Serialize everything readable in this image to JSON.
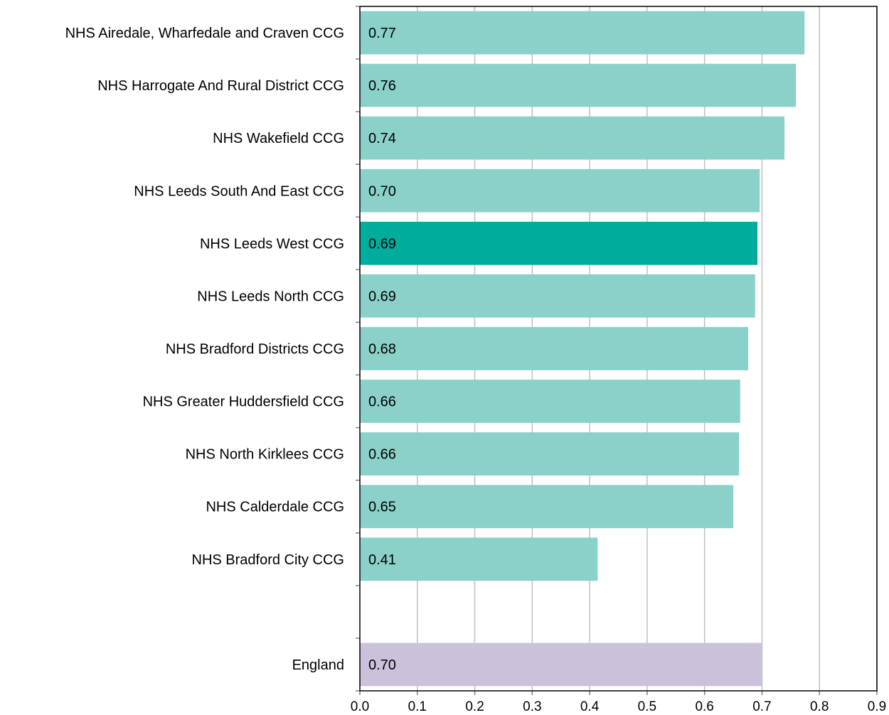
{
  "chart_data": {
    "type": "bar",
    "orientation": "horizontal",
    "categories": [
      "NHS Airedale, Wharfedale and Craven CCG",
      "NHS Harrogate And Rural District CCG",
      "NHS Wakefield CCG",
      "NHS Leeds South And East CCG",
      "NHS Leeds West CCG",
      "NHS Leeds North CCG",
      "NHS Bradford Districts CCG",
      "NHS Greater Huddersfield CCG",
      "NHS North Kirklees CCG",
      "NHS Calderdale CCG",
      "NHS Bradford City CCG",
      "",
      "England"
    ],
    "values": [
      0.774,
      0.759,
      0.739,
      0.696,
      0.692,
      0.688,
      0.676,
      0.662,
      0.66,
      0.65,
      0.414,
      null,
      0.699
    ],
    "value_labels": [
      "0.77",
      "0.76",
      "0.74",
      "0.70",
      "0.69",
      "0.69",
      "0.68",
      "0.66",
      "0.66",
      "0.65",
      "0.41",
      "",
      "0.70"
    ],
    "bar_colors": [
      "#8ad1c9",
      "#8ad1c9",
      "#8ad1c9",
      "#8ad1c9",
      "#00ad9c",
      "#8ad1c9",
      "#8ad1c9",
      "#8ad1c9",
      "#8ad1c9",
      "#8ad1c9",
      "#8ad1c9",
      "",
      "#cbc1db"
    ],
    "x_ticks": [
      "0.0",
      "0.1",
      "0.2",
      "0.3",
      "0.4",
      "0.5",
      "0.6",
      "0.7",
      "0.8",
      "0.9"
    ],
    "xlim": [
      0,
      0.9
    ],
    "title": "",
    "xlabel": "",
    "ylabel": "",
    "grid": "vertical",
    "legend": "none"
  }
}
